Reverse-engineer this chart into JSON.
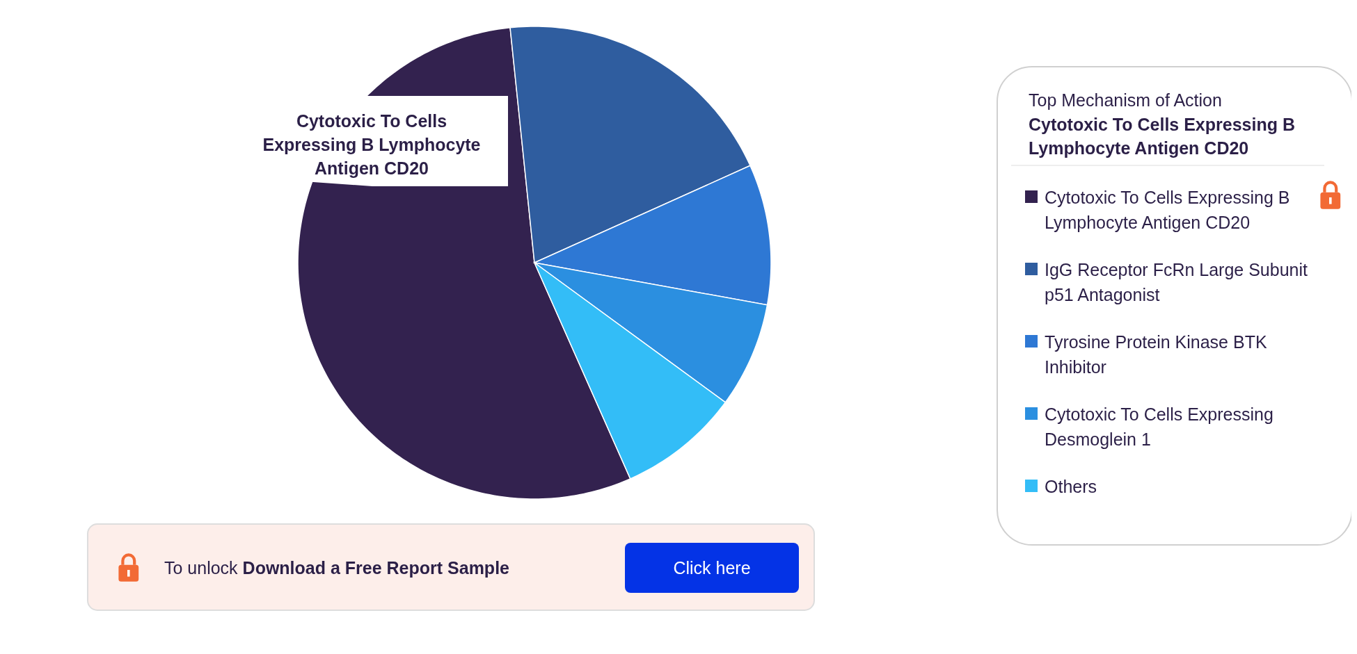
{
  "chart_data": {
    "type": "pie",
    "legend_title": "Top Mechanism of Action",
    "categories": [
      "Cytotoxic To Cells Expressing B Lymphocyte Antigen CD20",
      "IgG Receptor FcRn Large Subunit p51 Antagonist",
      "Tyrosine Protein Kinase BTK Inhibitor",
      "Cytotoxic To Cells Expressing Desmoglein 1",
      "Others"
    ],
    "values": [
      55.0,
      19.9,
      9.6,
      7.2,
      8.3
    ],
    "colors": [
      "#33224f",
      "#2f5d9f",
      "#2e78d4",
      "#2b8fe0",
      "#33bdf7"
    ],
    "legend": "right",
    "annotations": [
      "Cytotoxic To Cells Expressing B Lymphocyte Antigen CD20",
      "Cytotoxic To Cells Expressing B Lymphocyte Antigen CD20",
      "To unlock",
      "Download a Free Report Sample",
      "Click here"
    ]
  }
}
